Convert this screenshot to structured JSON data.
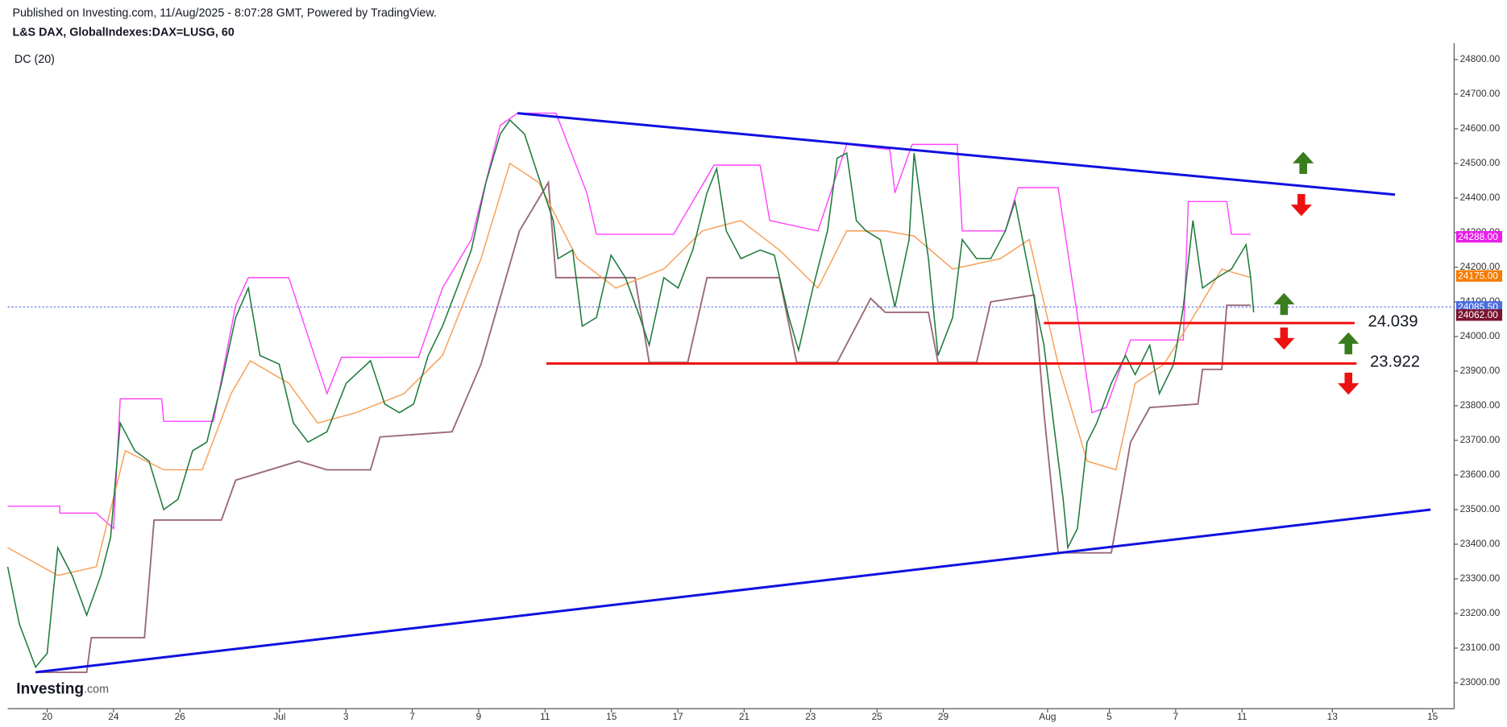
{
  "chart_data": {
    "type": "line",
    "header": "Published on Investing.com, 11/Aug/2025 - 8:07:28 GMT, Powered by TradingView.",
    "title": "L&S DAX, GlobalIndexes:DAX=LUSG, 60",
    "indicator": "DC (20)",
    "logo": "Investing",
    "logo_suffix": ".com",
    "xlim": [
      -1.19,
      42.39
    ],
    "ylim": [
      22925,
      24847
    ],
    "xticks": [
      {
        "value": 0,
        "label": "20"
      },
      {
        "value": 2,
        "label": "24"
      },
      {
        "value": 4,
        "label": "26"
      },
      {
        "value": 7,
        "label": "Jul"
      },
      {
        "value": 9,
        "label": "3"
      },
      {
        "value": 11,
        "label": "7"
      },
      {
        "value": 13,
        "label": "9"
      },
      {
        "value": 15,
        "label": "11"
      },
      {
        "value": 17,
        "label": "15"
      },
      {
        "value": 19,
        "label": "17"
      },
      {
        "value": 21,
        "label": "21"
      },
      {
        "value": 23,
        "label": "23"
      },
      {
        "value": 25,
        "label": "25"
      },
      {
        "value": 27,
        "label": "29"
      },
      {
        "value": 30.14,
        "label": "Aug"
      },
      {
        "value": 32,
        "label": "5"
      },
      {
        "value": 34,
        "label": "7"
      },
      {
        "value": 36,
        "label": "11"
      },
      {
        "value": 38.72,
        "label": "13"
      },
      {
        "value": 41.74,
        "label": "15"
      }
    ],
    "yticks": [
      {
        "value": 23000,
        "label": "23000.00"
      },
      {
        "value": 23100,
        "label": "23100.00"
      },
      {
        "value": 23200,
        "label": "23200.00"
      },
      {
        "value": 23300,
        "label": "23300.00"
      },
      {
        "value": 23400,
        "label": "23400.00"
      },
      {
        "value": 23500,
        "label": "23500.00"
      },
      {
        "value": 23600,
        "label": "23600.00"
      },
      {
        "value": 23700,
        "label": "23700.00"
      },
      {
        "value": 23800,
        "label": "23800.00"
      },
      {
        "value": 23900,
        "label": "23900.00"
      },
      {
        "value": 24000,
        "label": "24000.00"
      },
      {
        "value": 24100,
        "label": "24100.00"
      },
      {
        "value": 24200,
        "label": "24200.00"
      },
      {
        "value": 24300,
        "label": "24300.00"
      },
      {
        "value": 24400,
        "label": "24400.00"
      },
      {
        "value": 24500,
        "label": "24500.00"
      },
      {
        "value": 24600,
        "label": "24600.00"
      },
      {
        "value": 24700,
        "label": "24700.00"
      },
      {
        "value": 24800,
        "label": "24800.00"
      }
    ],
    "series": [
      {
        "color": "#ff44ff",
        "width": 1.2,
        "x": [
          -1.19,
          0.38,
          0.38,
          1.48,
          2.0,
          2.2,
          3.45,
          3.51,
          5.01,
          5.68,
          6.06,
          7.28,
          8.43,
          8.87,
          11.19,
          11.91,
          12.78,
          13.65,
          14.17,
          15.33,
          16.26,
          16.55,
          18.87,
          20.09,
          21.48,
          21.77,
          23.22,
          24.09,
          25.39,
          25.54,
          26.06,
          27.42,
          27.57,
          28.87,
          29.25,
          30.46,
          31.48,
          31.91,
          32.64,
          34.23,
          34.38,
          35.54,
          35.68,
          36.26
        ],
        "values": [
          23510,
          23510,
          23490,
          23490,
          23445,
          23820,
          23820,
          23755,
          23755,
          24090,
          24170,
          24170,
          23835,
          23940,
          23940,
          24140,
          24280,
          24610,
          24645,
          24645,
          24415,
          24295,
          24295,
          24495,
          24495,
          24335,
          24305,
          24555,
          24540,
          24415,
          24555,
          24555,
          24305,
          24305,
          24430,
          24430,
          23780,
          23795,
          23990,
          23990,
          24390,
          24390,
          24295,
          24295
        ]
      },
      {
        "color": "#9c6b7a",
        "width": 1.6,
        "x": [
          -0.35,
          1.19,
          1.33,
          2.93,
          3.22,
          5.25,
          5.68,
          7.57,
          8.43,
          9.74,
          10.03,
          12.2,
          13.07,
          14.23,
          15.1,
          15.33,
          17.71,
          18.14,
          19.3,
          19.88,
          22.06,
          22.58,
          23.8,
          24.81,
          25.25,
          26.55,
          26.84,
          28.0,
          28.43,
          29.74,
          30.03,
          30.46,
          32.06,
          32.64,
          33.22,
          34.67,
          34.81,
          35.39,
          35.54,
          36.26
        ],
        "values": [
          23030,
          23030,
          23130,
          23130,
          23470,
          23470,
          23585,
          23640,
          23615,
          23615,
          23710,
          23725,
          23920,
          24305,
          24445,
          24170,
          24170,
          23925,
          23925,
          24170,
          24170,
          23925,
          23925,
          24110,
          24070,
          24070,
          23925,
          23925,
          24100,
          24120,
          23780,
          23375,
          23375,
          23695,
          23795,
          23805,
          23905,
          23905,
          24090,
          24090
        ]
      },
      {
        "color": "#f7a35c",
        "width": 1.3,
        "x": [
          -1.19,
          0.32,
          1.48,
          2.35,
          3.51,
          4.67,
          5.54,
          6.12,
          7.28,
          8.15,
          9.3,
          10.75,
          11.91,
          13.07,
          13.94,
          14.81,
          15.97,
          17.13,
          18.58,
          19.74,
          20.9,
          22.06,
          23.22,
          24.09,
          25.25,
          26.12,
          27.28,
          28.72,
          29.59,
          30.46,
          31.33,
          32.2,
          32.78,
          33.65,
          34.52,
          35.39,
          36.26
        ],
        "values": [
          23390,
          23310,
          23335,
          23670,
          23615,
          23615,
          23835,
          23930,
          23865,
          23750,
          23780,
          23835,
          23945,
          24225,
          24500,
          24445,
          24225,
          24140,
          24195,
          24305,
          24335,
          24250,
          24140,
          24305,
          24305,
          24290,
          24195,
          24225,
          24280,
          23920,
          23640,
          23615,
          23865,
          23920,
          24055,
          24195,
          24170
        ]
      },
      {
        "color": "#1e7a3c",
        "width": 1.3,
        "x": [
          -1.19,
          -0.84,
          -0.35,
          0,
          0.32,
          0.75,
          1.19,
          1.62,
          1.91,
          2.2,
          2.64,
          3.07,
          3.51,
          3.94,
          4.38,
          4.81,
          5.25,
          5.68,
          6.06,
          6.41,
          6.99,
          7.42,
          7.86,
          8.43,
          9.01,
          9.74,
          10.17,
          10.61,
          11.04,
          11.48,
          11.91,
          12.35,
          12.78,
          13.22,
          13.65,
          13.94,
          14.38,
          14.81,
          15.25,
          15.39,
          15.83,
          16.12,
          16.55,
          16.99,
          17.42,
          17.86,
          18.14,
          18.58,
          19.01,
          19.45,
          19.88,
          20.17,
          20.46,
          20.9,
          21.48,
          21.91,
          22.35,
          22.64,
          23.07,
          23.51,
          23.8,
          24.09,
          24.38,
          24.67,
          25.1,
          25.54,
          25.97,
          26.12,
          26.55,
          26.84,
          27.28,
          27.57,
          28.0,
          28.43,
          28.87,
          29.16,
          29.45,
          29.74,
          30.03,
          30.32,
          30.61,
          30.75,
          31.04,
          31.33,
          31.62,
          32.06,
          32.49,
          32.78,
          33.22,
          33.51,
          33.94,
          34.23,
          34.52,
          34.81,
          35.25,
          35.68,
          36.12,
          36.26,
          36.35
        ],
        "values": [
          23335,
          23170,
          23045,
          23085,
          23390,
          23310,
          23195,
          23310,
          23420,
          23750,
          23670,
          23640,
          23500,
          23530,
          23670,
          23695,
          23865,
          24055,
          24140,
          23945,
          23920,
          23750,
          23695,
          23725,
          23865,
          23930,
          23805,
          23780,
          23805,
          23945,
          24030,
          24140,
          24250,
          24445,
          24585,
          24625,
          24585,
          24460,
          24335,
          24225,
          24250,
          24030,
          24055,
          24235,
          24170,
          24055,
          23975,
          24170,
          24140,
          24250,
          24415,
          24485,
          24305,
          24225,
          24250,
          24235,
          24055,
          23960,
          24140,
          24305,
          24515,
          24530,
          24335,
          24305,
          24280,
          24085,
          24280,
          24530,
          24225,
          23945,
          24055,
          24280,
          24225,
          24225,
          24305,
          24390,
          24250,
          24110,
          23975,
          23750,
          23530,
          23390,
          23445,
          23695,
          23750,
          23865,
          23945,
          23890,
          23975,
          23835,
          23920,
          24085,
          24335,
          24140,
          24170,
          24195,
          24265,
          24170,
          24070
        ]
      }
    ],
    "trend_lines": [
      {
        "color": "#1010e0",
        "x": [
          14.17,
          40.61
        ],
        "values": [
          24645,
          24410
        ]
      },
      {
        "color": "#1010e0",
        "x": [
          -0.35,
          41.68
        ],
        "values": [
          23030,
          23500
        ]
      }
    ],
    "levels": [
      {
        "color": "#ee1111",
        "value": 24039,
        "label": "24.039",
        "x": [
          30.03,
          39.39
        ]
      },
      {
        "color": "#ee1111",
        "value": 23922,
        "label": "23.922",
        "x": [
          15.04,
          39.45
        ]
      }
    ],
    "last_price": {
      "value": 24085.5,
      "color": "#3d5be0"
    },
    "price_tags": [
      {
        "value": 24288,
        "label": "24288.00",
        "color": "#e91ee9"
      },
      {
        "value": 24175,
        "label": "24175.00",
        "color": "#f57c00"
      },
      {
        "value": 24085.5,
        "label": "24085.50",
        "color": "#4a6ee0"
      },
      {
        "value": 24062,
        "label": "24062.00",
        "color": "#7a1330"
      }
    ]
  }
}
